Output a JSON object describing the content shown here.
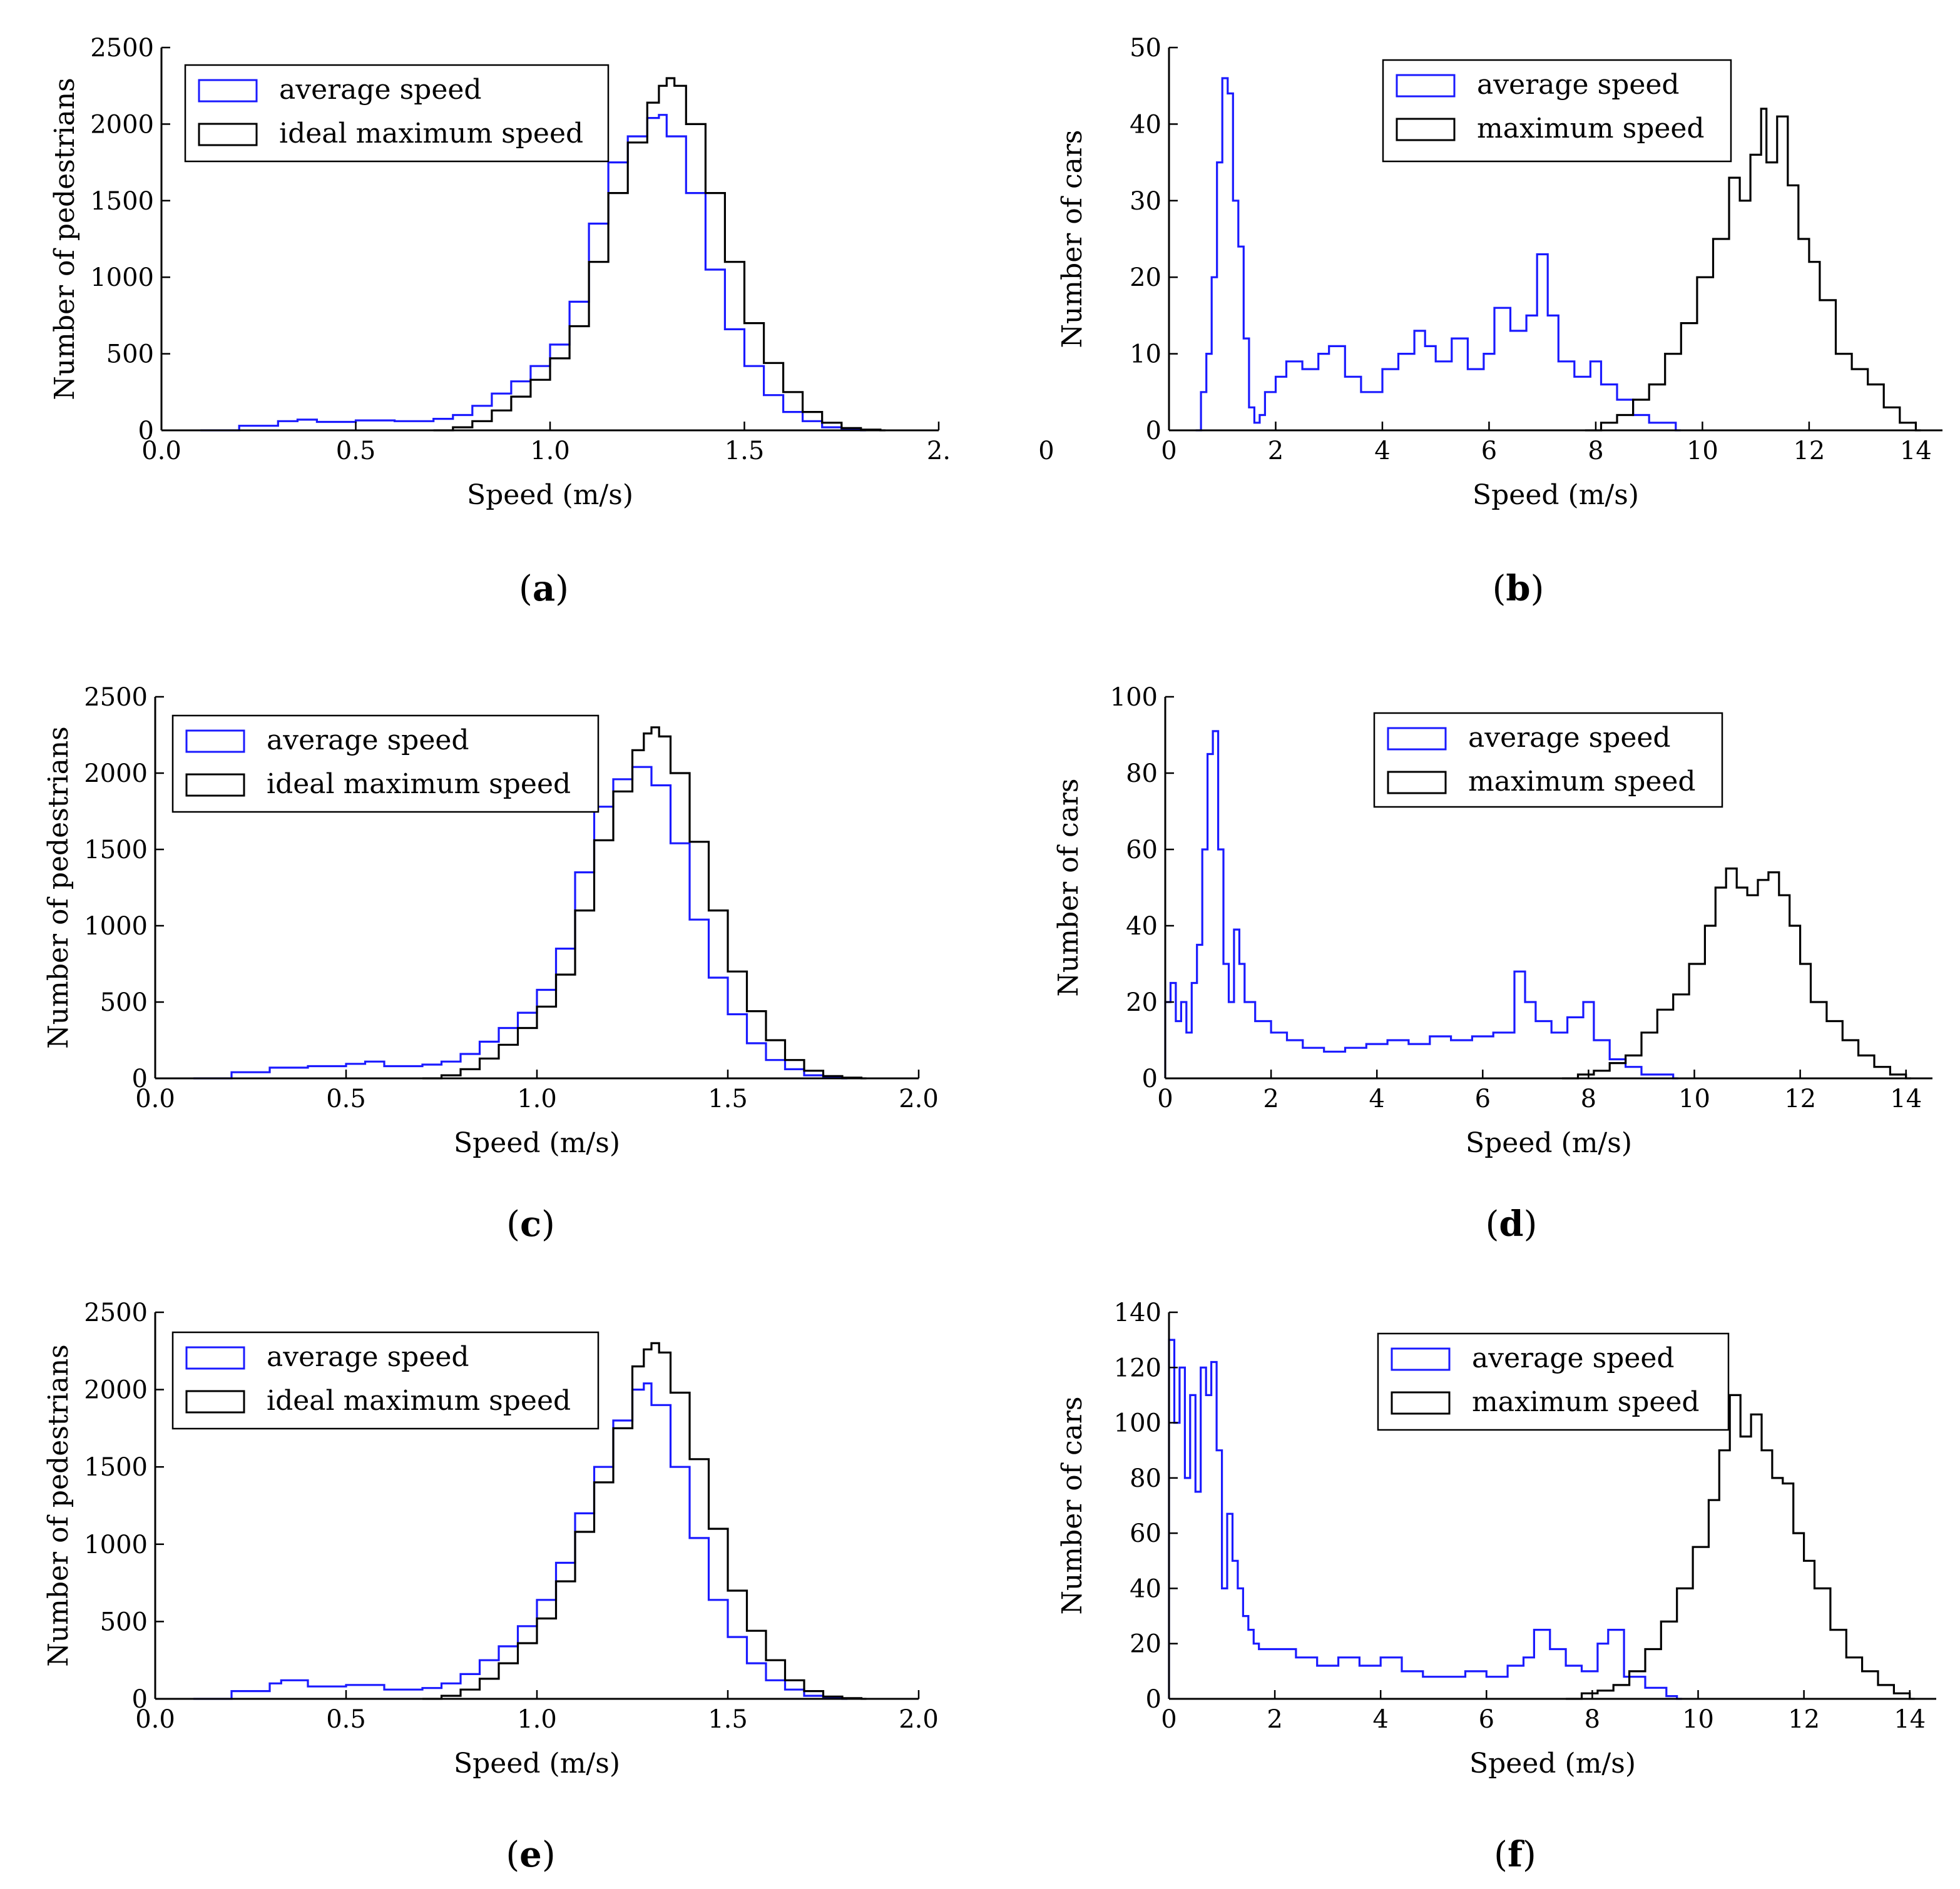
{
  "chart_data": [
    {
      "type": "histogram",
      "panel_label": "a",
      "xlabel": "Speed (m/s)",
      "ylabel": "Number of pedestrians",
      "xlim": [
        0.0,
        2.0
      ],
      "ylim": [
        0,
        2500
      ],
      "xticks": [
        0.0,
        0.5,
        1.0,
        1.5,
        2.0
      ],
      "xtick_labels": [
        "0.0",
        "0.5",
        "1.0",
        "1.5",
        "2."
      ],
      "yticks": [
        0,
        500,
        1000,
        1500,
        2000,
        2500
      ],
      "ytick_labels": [
        "0",
        "500",
        "1000",
        "1500",
        "2000",
        "2500"
      ],
      "legend_position": "top-left",
      "series": [
        {
          "name": "average speed",
          "color": "#1a1aff",
          "x": [
            0.1,
            0.2,
            0.3,
            0.35,
            0.4,
            0.5,
            0.6,
            0.7,
            0.75,
            0.8,
            0.85,
            0.9,
            0.95,
            1.0,
            1.05,
            1.1,
            1.15,
            1.2,
            1.25,
            1.28,
            1.3,
            1.35,
            1.4,
            1.45,
            1.5,
            1.55,
            1.6,
            1.65,
            1.7,
            1.75,
            1.8
          ],
          "values": [
            0,
            30,
            60,
            70,
            55,
            65,
            60,
            75,
            100,
            160,
            240,
            320,
            420,
            560,
            840,
            1350,
            1750,
            1920,
            2040,
            2060,
            1920,
            1550,
            1050,
            660,
            420,
            230,
            120,
            60,
            20,
            5,
            0
          ]
        },
        {
          "name": "ideal maximum speed",
          "color": "#000000",
          "x": [
            0.7,
            0.75,
            0.8,
            0.85,
            0.9,
            0.95,
            1.0,
            1.05,
            1.1,
            1.15,
            1.2,
            1.25,
            1.28,
            1.3,
            1.32,
            1.35,
            1.4,
            1.45,
            1.5,
            1.55,
            1.6,
            1.65,
            1.7,
            1.75,
            1.8,
            1.85
          ],
          "values": [
            0,
            20,
            60,
            130,
            220,
            330,
            470,
            680,
            1100,
            1550,
            1880,
            2140,
            2250,
            2300,
            2250,
            2000,
            1550,
            1100,
            700,
            440,
            250,
            120,
            50,
            15,
            5,
            0
          ]
        }
      ]
    },
    {
      "type": "histogram",
      "panel_label": "b",
      "xlabel": "Speed (m/s)",
      "ylabel": "Number of cars",
      "xlim": [
        0,
        14.5
      ],
      "ylim": [
        0,
        50
      ],
      "xticks": [
        0,
        2,
        4,
        6,
        8,
        10,
        12,
        14
      ],
      "xtick_labels": [
        "0",
        "2",
        "4",
        "6",
        "8",
        "10",
        "12",
        "14"
      ],
      "yticks": [
        0,
        10,
        20,
        30,
        40,
        50
      ],
      "ytick_labels": [
        "0",
        "10",
        "20",
        "30",
        "40",
        "50"
      ],
      "stray_tick_label": "0",
      "legend_position": "top-center",
      "series": [
        {
          "name": "average speed",
          "color": "#1a1aff",
          "x": [
            0.5,
            0.6,
            0.7,
            0.8,
            0.9,
            1.0,
            1.1,
            1.2,
            1.3,
            1.4,
            1.5,
            1.6,
            1.7,
            1.8,
            2.0,
            2.2,
            2.5,
            2.8,
            3.0,
            3.3,
            3.6,
            4.0,
            4.3,
            4.6,
            4.8,
            5.0,
            5.3,
            5.6,
            5.9,
            6.1,
            6.4,
            6.7,
            6.9,
            7.1,
            7.3,
            7.6,
            7.9,
            8.1,
            8.4,
            8.7,
            9.0,
            9.3,
            9.5
          ],
          "values": [
            0,
            5,
            10,
            20,
            35,
            46,
            44,
            30,
            24,
            12,
            3,
            1,
            2,
            5,
            7,
            9,
            8,
            10,
            11,
            7,
            5,
            8,
            10,
            13,
            11,
            9,
            12,
            8,
            10,
            16,
            13,
            15,
            23,
            15,
            9,
            7,
            9,
            6,
            4,
            2,
            1,
            1,
            0
          ]
        },
        {
          "name": "maximum speed",
          "color": "#000000",
          "x": [
            7.8,
            8.1,
            8.4,
            8.7,
            9.0,
            9.3,
            9.6,
            9.9,
            10.2,
            10.5,
            10.7,
            10.9,
            11.1,
            11.2,
            11.4,
            11.6,
            11.8,
            12.0,
            12.2,
            12.5,
            12.8,
            13.1,
            13.4,
            13.7,
            14.0
          ],
          "values": [
            0,
            1,
            2,
            4,
            6,
            10,
            14,
            20,
            25,
            33,
            30,
            36,
            42,
            35,
            41,
            32,
            25,
            22,
            17,
            10,
            8,
            6,
            3,
            1,
            0
          ]
        }
      ]
    },
    {
      "type": "histogram",
      "panel_label": "c",
      "xlabel": "Speed (m/s)",
      "ylabel": "Number of pedestrians",
      "xlim": [
        0.0,
        2.0
      ],
      "ylim": [
        0,
        2500
      ],
      "xticks": [
        0.0,
        0.5,
        1.0,
        1.5,
        2.0
      ],
      "xtick_labels": [
        "0.0",
        "0.5",
        "1.0",
        "1.5",
        "2.0"
      ],
      "yticks": [
        0,
        500,
        1000,
        1500,
        2000,
        2500
      ],
      "ytick_labels": [
        "0",
        "500",
        "1000",
        "1500",
        "2000",
        "2500"
      ],
      "legend_position": "top-left",
      "series": [
        {
          "name": "average speed",
          "color": "#1a1aff",
          "x": [
            0.1,
            0.2,
            0.3,
            0.4,
            0.5,
            0.55,
            0.6,
            0.7,
            0.75,
            0.8,
            0.85,
            0.9,
            0.95,
            1.0,
            1.05,
            1.1,
            1.15,
            1.2,
            1.25,
            1.28,
            1.3,
            1.35,
            1.4,
            1.45,
            1.5,
            1.55,
            1.6,
            1.65,
            1.7,
            1.75,
            1.8
          ],
          "values": [
            0,
            40,
            70,
            80,
            95,
            110,
            80,
            90,
            110,
            160,
            240,
            330,
            430,
            580,
            850,
            1350,
            1780,
            1960,
            2040,
            2040,
            1920,
            1540,
            1040,
            660,
            420,
            230,
            120,
            60,
            20,
            5,
            0
          ]
        },
        {
          "name": "ideal maximum speed",
          "color": "#000000",
          "x": [
            0.7,
            0.75,
            0.8,
            0.85,
            0.9,
            0.95,
            1.0,
            1.05,
            1.1,
            1.15,
            1.2,
            1.25,
            1.28,
            1.3,
            1.32,
            1.35,
            1.4,
            1.45,
            1.5,
            1.55,
            1.6,
            1.65,
            1.7,
            1.75,
            1.8,
            1.85
          ],
          "values": [
            0,
            20,
            60,
            130,
            220,
            330,
            470,
            680,
            1100,
            1560,
            1880,
            2150,
            2260,
            2300,
            2240,
            2000,
            1550,
            1100,
            700,
            440,
            250,
            120,
            50,
            15,
            5,
            0
          ]
        }
      ]
    },
    {
      "type": "histogram",
      "panel_label": "d",
      "xlabel": "Speed (m/s)",
      "ylabel": "Number of cars",
      "xlim": [
        0,
        14.5
      ],
      "ylim": [
        0,
        100
      ],
      "xticks": [
        0,
        2,
        4,
        6,
        8,
        10,
        12,
        14
      ],
      "xtick_labels": [
        "0",
        "2",
        "4",
        "6",
        "8",
        "10",
        "12",
        "14"
      ],
      "yticks": [
        0,
        20,
        40,
        60,
        80,
        100
      ],
      "ytick_labels": [
        "0",
        "20",
        "40",
        "60",
        "80",
        "100"
      ],
      "legend_position": "top-center",
      "series": [
        {
          "name": "average speed",
          "color": "#1a1aff",
          "x": [
            0.0,
            0.1,
            0.2,
            0.3,
            0.4,
            0.5,
            0.6,
            0.7,
            0.8,
            0.9,
            1.0,
            1.1,
            1.2,
            1.3,
            1.4,
            1.5,
            1.7,
            2.0,
            2.3,
            2.6,
            3.0,
            3.4,
            3.8,
            4.2,
            4.6,
            5.0,
            5.4,
            5.8,
            6.2,
            6.6,
            6.8,
            7.0,
            7.3,
            7.6,
            7.9,
            8.1,
            8.4,
            8.7,
            9.0,
            9.3,
            9.6
          ],
          "values": [
            20,
            25,
            15,
            20,
            12,
            25,
            35,
            60,
            85,
            91,
            60,
            30,
            20,
            39,
            30,
            20,
            15,
            12,
            10,
            8,
            7,
            8,
            9,
            10,
            9,
            11,
            10,
            11,
            12,
            28,
            20,
            15,
            12,
            16,
            20,
            10,
            5,
            3,
            1,
            1,
            0
          ]
        },
        {
          "name": "maximum speed",
          "color": "#000000",
          "x": [
            7.5,
            7.8,
            8.1,
            8.4,
            8.7,
            9.0,
            9.3,
            9.6,
            9.9,
            10.2,
            10.4,
            10.6,
            10.8,
            11.0,
            11.2,
            11.4,
            11.6,
            11.8,
            12.0,
            12.2,
            12.5,
            12.8,
            13.1,
            13.4,
            13.7,
            14.0
          ],
          "values": [
            0,
            1,
            2,
            4,
            6,
            12,
            18,
            22,
            30,
            40,
            50,
            55,
            50,
            48,
            52,
            54,
            48,
            40,
            30,
            20,
            15,
            10,
            6,
            3,
            1,
            0
          ]
        }
      ]
    },
    {
      "type": "histogram",
      "panel_label": "e",
      "xlabel": "Speed (m/s)",
      "ylabel": "Number of pedestrians",
      "xlim": [
        0.0,
        2.0
      ],
      "ylim": [
        0,
        2500
      ],
      "xticks": [
        0.0,
        0.5,
        1.0,
        1.5,
        2.0
      ],
      "xtick_labels": [
        "0.0",
        "0.5",
        "1.0",
        "1.5",
        "2.0"
      ],
      "yticks": [
        0,
        500,
        1000,
        1500,
        2000,
        2500
      ],
      "ytick_labels": [
        "0",
        "500",
        "1000",
        "1500",
        "2000",
        "2500"
      ],
      "legend_position": "top-left",
      "series": [
        {
          "name": "average speed",
          "color": "#1a1aff",
          "x": [
            0.1,
            0.2,
            0.3,
            0.33,
            0.4,
            0.5,
            0.6,
            0.7,
            0.75,
            0.8,
            0.85,
            0.9,
            0.95,
            1.0,
            1.05,
            1.1,
            1.15,
            1.2,
            1.25,
            1.28,
            1.3,
            1.35,
            1.4,
            1.45,
            1.5,
            1.55,
            1.6,
            1.65,
            1.7,
            1.75,
            1.8
          ],
          "values": [
            0,
            50,
            100,
            120,
            80,
            90,
            60,
            70,
            100,
            160,
            250,
            340,
            470,
            640,
            880,
            1200,
            1500,
            1800,
            2000,
            2040,
            1900,
            1500,
            1040,
            640,
            400,
            230,
            120,
            60,
            20,
            5,
            0
          ]
        },
        {
          "name": "ideal maximum speed",
          "color": "#000000",
          "x": [
            0.7,
            0.75,
            0.8,
            0.85,
            0.9,
            0.95,
            1.0,
            1.05,
            1.1,
            1.15,
            1.2,
            1.25,
            1.28,
            1.3,
            1.32,
            1.35,
            1.4,
            1.45,
            1.5,
            1.55,
            1.6,
            1.65,
            1.7,
            1.75,
            1.8,
            1.85
          ],
          "values": [
            0,
            20,
            60,
            130,
            230,
            360,
            520,
            760,
            1080,
            1400,
            1750,
            2150,
            2260,
            2300,
            2240,
            1980,
            1550,
            1100,
            700,
            440,
            250,
            120,
            50,
            15,
            5,
            0
          ]
        }
      ]
    },
    {
      "type": "histogram",
      "panel_label": "f",
      "xlabel": "Speed (m/s)",
      "ylabel": "Number of cars",
      "xlim": [
        0,
        14.5
      ],
      "ylim": [
        0,
        140
      ],
      "xticks": [
        0,
        2,
        4,
        6,
        8,
        10,
        12,
        14
      ],
      "xtick_labels": [
        "0",
        "2",
        "4",
        "6",
        "8",
        "10",
        "12",
        "14"
      ],
      "yticks": [
        0,
        20,
        40,
        60,
        80,
        100,
        120,
        140
      ],
      "ytick_labels": [
        "0",
        "20",
        "40",
        "60",
        "80",
        "100",
        "120",
        "140"
      ],
      "legend_position": "top-right",
      "series": [
        {
          "name": "average speed",
          "color": "#1a1aff",
          "x": [
            0.0,
            0.1,
            0.2,
            0.3,
            0.4,
            0.5,
            0.6,
            0.7,
            0.8,
            0.9,
            1.0,
            1.1,
            1.2,
            1.3,
            1.4,
            1.5,
            1.6,
            1.7,
            2.0,
            2.4,
            2.8,
            3.2,
            3.6,
            4.0,
            4.4,
            4.8,
            5.2,
            5.6,
            6.0,
            6.4,
            6.7,
            6.9,
            7.2,
            7.5,
            7.8,
            8.1,
            8.3,
            8.6,
            9.0,
            9.4,
            9.6
          ],
          "values": [
            130,
            100,
            120,
            80,
            110,
            75,
            120,
            110,
            122,
            90,
            40,
            67,
            50,
            40,
            30,
            25,
            20,
            18,
            18,
            15,
            12,
            15,
            12,
            15,
            10,
            8,
            8,
            10,
            8,
            12,
            15,
            25,
            18,
            12,
            10,
            20,
            25,
            8,
            4,
            1,
            0
          ]
        },
        {
          "name": "maximum speed",
          "color": "#000000",
          "x": [
            7.5,
            7.8,
            8.1,
            8.4,
            8.7,
            9.0,
            9.3,
            9.6,
            9.9,
            10.2,
            10.4,
            10.6,
            10.8,
            11.0,
            11.2,
            11.4,
            11.6,
            11.8,
            12.0,
            12.2,
            12.5,
            12.8,
            13.1,
            13.4,
            13.7,
            14.0
          ],
          "values": [
            0,
            2,
            3,
            5,
            10,
            18,
            28,
            40,
            55,
            72,
            90,
            110,
            95,
            103,
            90,
            80,
            78,
            60,
            50,
            40,
            25,
            15,
            10,
            5,
            2,
            0
          ]
        }
      ]
    }
  ]
}
